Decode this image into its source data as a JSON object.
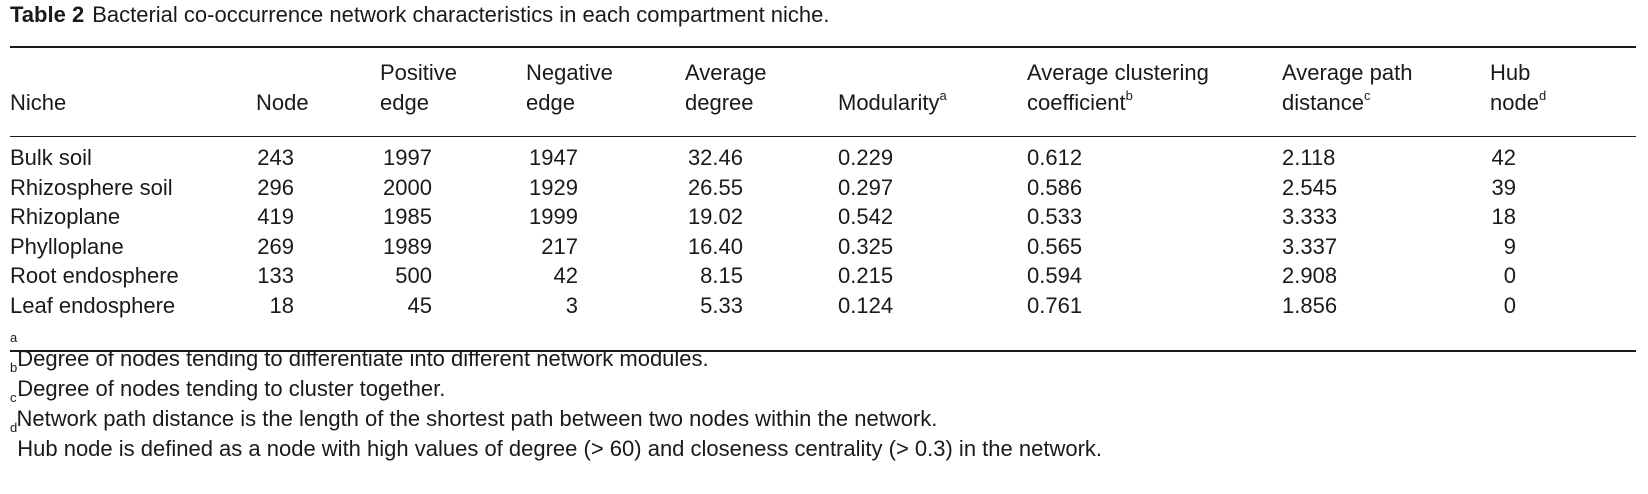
{
  "caption": {
    "label": "Table 2",
    "text": "Bacterial co-occurrence network characteristics in each compartment niche."
  },
  "headers": {
    "niche": "Niche",
    "node": "Node",
    "pos_l1": "Positive",
    "pos_l2": "edge",
    "neg_l1": "Negative",
    "neg_l2": "edge",
    "deg_l1": "Average",
    "deg_l2": "degree",
    "mod": "Modularity",
    "mod_sup": "a",
    "clus_l1": "Average clustering",
    "clus_l2": "coefficient",
    "clus_sup": "b",
    "path_l1": "Average path",
    "path_l2": "distance",
    "path_sup": "c",
    "hub_l1": "Hub",
    "hub_l2": "node",
    "hub_sup": "d"
  },
  "rows": [
    {
      "niche": "Bulk soil",
      "node": "243",
      "pos": "1997",
      "neg": "1947",
      "deg": "32.46",
      "mod": "0.229",
      "clus": "0.612",
      "path": "2.118",
      "hub": "42"
    },
    {
      "niche": "Rhizosphere soil",
      "node": "296",
      "pos": "2000",
      "neg": "1929",
      "deg": "26.55",
      "mod": "0.297",
      "clus": "0.586",
      "path": "2.545",
      "hub": "39"
    },
    {
      "niche": "Rhizoplane",
      "node": "419",
      "pos": "1985",
      "neg": "1999",
      "deg": "19.02",
      "mod": "0.542",
      "clus": "0.533",
      "path": "3.333",
      "hub": "18"
    },
    {
      "niche": "Phylloplane",
      "node": "269",
      "pos": "1989",
      "neg": "217",
      "deg": "16.40",
      "mod": "0.325",
      "clus": "0.565",
      "path": "3.337",
      "hub": "9"
    },
    {
      "niche": "Root endosphere",
      "node": "133",
      "pos": "500",
      "neg": "42",
      "deg": "8.15",
      "mod": "0.215",
      "clus": "0.594",
      "path": "2.908",
      "hub": "0"
    },
    {
      "niche": "Leaf endosphere",
      "node": "18",
      "pos": "45",
      "neg": "3",
      "deg": "5.33",
      "mod": "0.124",
      "clus": "0.761",
      "path": "1.856",
      "hub": "0"
    }
  ],
  "footnotes": [
    {
      "mark": "a",
      "text": "Degree of nodes tending to differentiate into different network modules."
    },
    {
      "mark": "b",
      "text": "Degree of nodes tending to cluster together."
    },
    {
      "mark": "c",
      "text": "Network path distance is the length of the shortest path between two nodes within the network."
    },
    {
      "mark": "d",
      "text": "Hub node is defined as a node with high values of degree (> 60) and closeness centrality (> 0.3) in the network."
    }
  ]
}
